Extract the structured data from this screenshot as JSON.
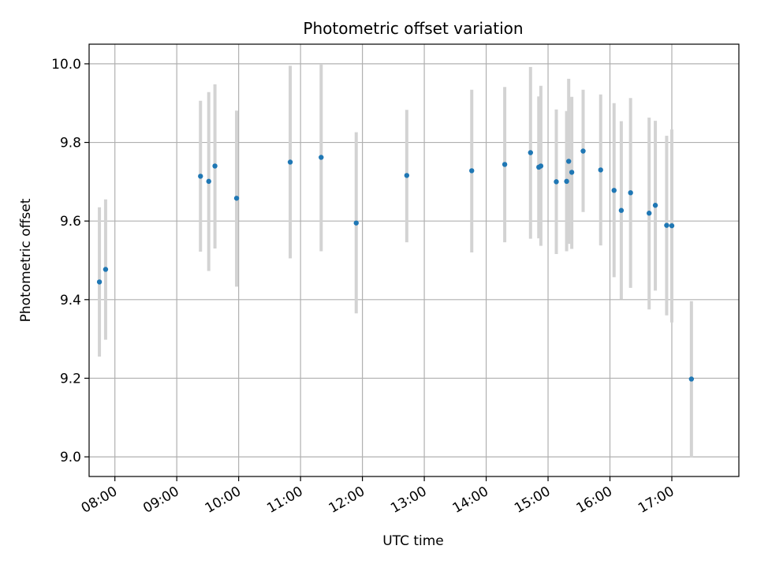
{
  "chart_data": {
    "type": "scatter",
    "title": "Photometric offset variation",
    "xlabel": "UTC time",
    "ylabel": "Photometric offset",
    "xlim": [
      "07:35",
      "18:05"
    ],
    "ylim": [
      8.95,
      10.05
    ],
    "grid": true,
    "x_ticks": [
      "08:00",
      "09:00",
      "10:00",
      "11:00",
      "12:00",
      "13:00",
      "14:00",
      "15:00",
      "16:00",
      "17:00"
    ],
    "y_ticks": [
      9.0,
      9.2,
      9.4,
      9.6,
      9.8,
      10.0
    ],
    "y_tick_labels": [
      "9.0",
      "9.2",
      "9.4",
      "9.6",
      "9.8",
      "10.0"
    ],
    "colors": {
      "point": "#1f77b4",
      "error_bar": "#d3d3d3",
      "grid": "#b0b0b0"
    },
    "points": [
      {
        "x": "07:45",
        "y": 9.445,
        "lo": 9.255,
        "hi": 9.635
      },
      {
        "x": "07:51",
        "y": 9.477,
        "lo": 9.298,
        "hi": 9.655
      },
      {
        "x": "09:23",
        "y": 9.714,
        "lo": 9.522,
        "hi": 9.906
      },
      {
        "x": "09:31",
        "y": 9.701,
        "lo": 9.473,
        "hi": 9.928
      },
      {
        "x": "09:37",
        "y": 9.74,
        "lo": 9.53,
        "hi": 9.948
      },
      {
        "x": "09:58",
        "y": 9.658,
        "lo": 9.433,
        "hi": 9.881
      },
      {
        "x": "10:50",
        "y": 9.75,
        "lo": 9.505,
        "hi": 9.995
      },
      {
        "x": "11:20",
        "y": 9.762,
        "lo": 9.523,
        "hi": 9.998
      },
      {
        "x": "11:54",
        "y": 9.595,
        "lo": 9.365,
        "hi": 9.826
      },
      {
        "x": "12:43",
        "y": 9.716,
        "lo": 9.546,
        "hi": 9.883
      },
      {
        "x": "13:46",
        "y": 9.728,
        "lo": 9.52,
        "hi": 9.934
      },
      {
        "x": "14:18",
        "y": 9.744,
        "lo": 9.546,
        "hi": 9.941
      },
      {
        "x": "14:43",
        "y": 9.774,
        "lo": 9.555,
        "hi": 9.992
      },
      {
        "x": "14:51",
        "y": 9.737,
        "lo": 9.556,
        "hi": 9.917
      },
      {
        "x": "14:53",
        "y": 9.74,
        "lo": 9.537,
        "hi": 9.944
      },
      {
        "x": "15:08",
        "y": 9.7,
        "lo": 9.516,
        "hi": 9.884
      },
      {
        "x": "15:18",
        "y": 9.701,
        "lo": 9.523,
        "hi": 9.88
      },
      {
        "x": "15:20",
        "y": 9.752,
        "lo": 9.542,
        "hi": 9.962
      },
      {
        "x": "15:23",
        "y": 9.724,
        "lo": 9.529,
        "hi": 9.916
      },
      {
        "x": "15:34",
        "y": 9.778,
        "lo": 9.623,
        "hi": 9.934
      },
      {
        "x": "15:51",
        "y": 9.73,
        "lo": 9.538,
        "hi": 9.922
      },
      {
        "x": "16:04",
        "y": 9.678,
        "lo": 9.457,
        "hi": 9.9
      },
      {
        "x": "16:11",
        "y": 9.627,
        "lo": 9.401,
        "hi": 9.854
      },
      {
        "x": "16:20",
        "y": 9.672,
        "lo": 9.43,
        "hi": 9.913
      },
      {
        "x": "16:38",
        "y": 9.62,
        "lo": 9.375,
        "hi": 9.863
      },
      {
        "x": "16:44",
        "y": 9.64,
        "lo": 9.423,
        "hi": 9.855
      },
      {
        "x": "16:55",
        "y": 9.589,
        "lo": 9.36,
        "hi": 9.817
      },
      {
        "x": "17:00",
        "y": 9.588,
        "lo": 9.342,
        "hi": 9.833
      },
      {
        "x": "17:19",
        "y": 9.198,
        "lo": 8.998,
        "hi": 9.396
      }
    ]
  }
}
